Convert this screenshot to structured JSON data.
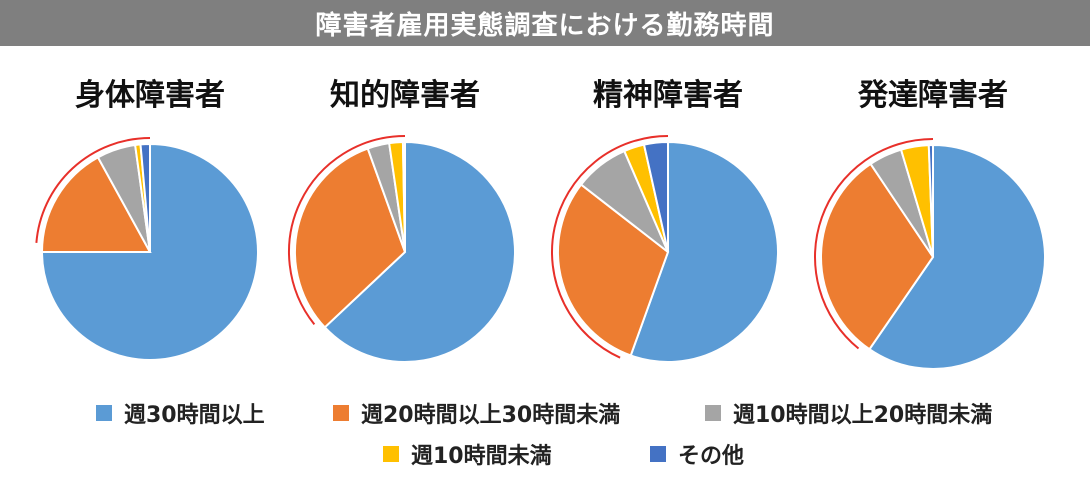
{
  "title": "障害者雇用実態調査における勤務時間",
  "chart_data": {
    "type": "pie",
    "legend_position": "bottom",
    "categories": [
      "週30時間以上",
      "週20時間以上30時間未満",
      "週10時間以上20時間未満",
      "週10時間未満",
      "その他"
    ],
    "colors": [
      "#5b9bd5",
      "#ed7d31",
      "#a5a5a5",
      "#ffc000",
      "#4472c4"
    ],
    "charts": [
      {
        "title": "身体障害者",
        "values": [
          75.0,
          17.0,
          5.8,
          0.8,
          1.4
        ]
      },
      {
        "title": "知的障害者",
        "values": [
          63.0,
          31.5,
          3.2,
          2.0,
          0.3
        ]
      },
      {
        "title": "精神障害者",
        "values": [
          55.5,
          30.0,
          8.0,
          3.0,
          3.5
        ]
      },
      {
        "title": "発達障害者",
        "values": [
          59.6,
          31.0,
          4.8,
          4.0,
          0.6
        ]
      }
    ]
  }
}
